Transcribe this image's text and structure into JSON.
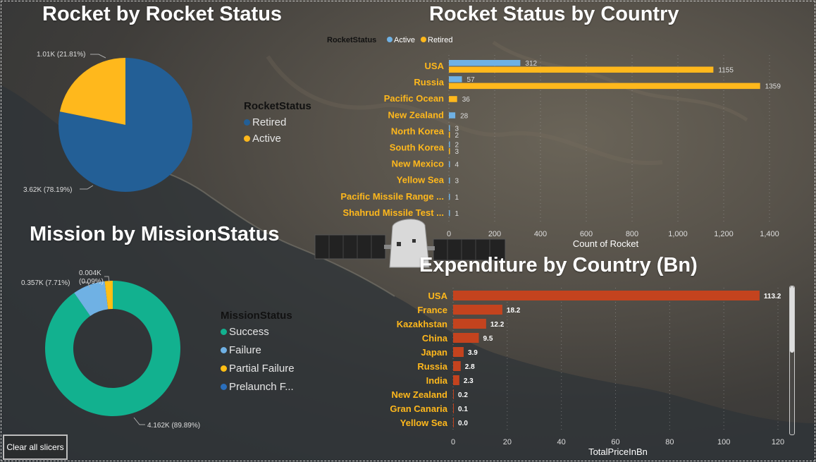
{
  "colors": {
    "active": "#6fb1e4",
    "retired": "#ffb81c",
    "pie_retired": "#235f96",
    "success": "#12b18f",
    "failure": "#6fb1e4",
    "partial_failure": "#ffbe14",
    "prelaunch": "#2a6ebb",
    "expenditure": "#c4431e",
    "country_label": "#ffb81c"
  },
  "rocket_pie": {
    "title": "Rocket by Rocket Status",
    "legend_title": "RocketStatus",
    "slices": [
      {
        "name": "Retired",
        "value": 78.19,
        "label": "3.62K (78.19%)",
        "color_key": "pie_retired"
      },
      {
        "name": "Active",
        "value": 21.81,
        "label": "1.01K (21.81%)",
        "color_key": "retired"
      }
    ]
  },
  "mission_donut": {
    "title": "Mission by MissionStatus",
    "legend_title": "MissionStatus",
    "slices": [
      {
        "name": "Success",
        "value": 89.89,
        "label": "4.162K (89.89%)",
        "color_key": "success"
      },
      {
        "name": "Failure",
        "value": 7.71,
        "label": "0.357K (7.71%)",
        "color_key": "failure"
      },
      {
        "name": "Partial Failure",
        "value": 0.09,
        "label": "0.004K",
        "label2": "(0.09%)",
        "color_key": "partial_failure"
      },
      {
        "name": "Prelaunch F...",
        "value": 0.0,
        "label": "",
        "color_key": "prelaunch"
      }
    ]
  },
  "clear_button": "Clear all slicers",
  "chart_data": [
    {
      "type": "bar",
      "orientation": "horizontal",
      "title": "Rocket Status by Country",
      "legend_title": "RocketStatus",
      "legend": [
        "Active",
        "Retired"
      ],
      "legend_position": "top-left",
      "xlabel": "Count of Rocket",
      "ylabel": "",
      "xlim": [
        0,
        1400
      ],
      "xticks": [
        "0",
        "200",
        "400",
        "600",
        "800",
        "1,000",
        "1,200",
        "1,400"
      ],
      "categories": [
        "USA",
        "Russia",
        "Pacific Ocean",
        "New Zealand",
        "North Korea",
        "South Korea",
        "New Mexico",
        "Yellow Sea",
        "Pacific Missile Range ...",
        "Shahrud Missile Test ..."
      ],
      "series": [
        {
          "name": "Active",
          "values": [
            312,
            57,
            null,
            28,
            3,
            2,
            4,
            3,
            1,
            1
          ]
        },
        {
          "name": "Retired",
          "values": [
            1155,
            1359,
            36,
            null,
            2,
            3,
            null,
            null,
            null,
            null
          ]
        }
      ]
    },
    {
      "type": "bar",
      "orientation": "horizontal",
      "title": "Expenditure by Country (Bn)",
      "xlabel": "TotalPriceInBn",
      "ylabel": "",
      "xlim": [
        0,
        120
      ],
      "xticks": [
        "0",
        "20",
        "40",
        "60",
        "80",
        "100",
        "120"
      ],
      "categories": [
        "USA",
        "France",
        "Kazakhstan",
        "China",
        "Japan",
        "Russia",
        "India",
        "New Zealand",
        "Gran Canaria",
        "Yellow Sea"
      ],
      "values": [
        113.2,
        18.2,
        12.2,
        9.5,
        3.9,
        2.8,
        2.3,
        0.2,
        0.1,
        0.0
      ],
      "value_labels": [
        "113.2",
        "18.2",
        "12.2",
        "9.5",
        "3.9",
        "2.8",
        "2.3",
        "0.2",
        "0.1",
        "0.0"
      ]
    }
  ]
}
